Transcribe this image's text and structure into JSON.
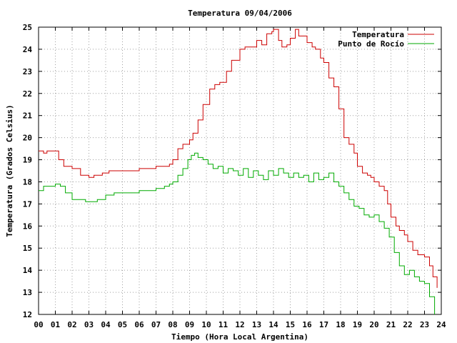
{
  "chart_data": {
    "type": "line",
    "title": "Temperatura 09/04/2006",
    "xlabel": "Tiempo (Hora Local Argentina)",
    "ylabel": "Temperatura (Grados Celsius)",
    "xlim": [
      0,
      24
    ],
    "ylim": [
      12,
      25
    ],
    "x_ticks": [
      0,
      1,
      2,
      3,
      4,
      5,
      6,
      7,
      8,
      9,
      10,
      11,
      12,
      13,
      14,
      15,
      16,
      17,
      18,
      19,
      20,
      21,
      22,
      23,
      24
    ],
    "x_tick_labels": [
      "00",
      "01",
      "02",
      "03",
      "04",
      "05",
      "06",
      "07",
      "08",
      "09",
      "10",
      "11",
      "12",
      "13",
      "14",
      "15",
      "16",
      "17",
      "18",
      "19",
      "20",
      "21",
      "22",
      "23",
      "24"
    ],
    "y_ticks": [
      12,
      13,
      14,
      15,
      16,
      17,
      18,
      19,
      20,
      21,
      22,
      23,
      24,
      25
    ],
    "grid": true,
    "legend_position": "top-right",
    "series": [
      {
        "name": "Temperatura",
        "color": "#cc0000",
        "x": [
          0,
          0.3,
          0.5,
          1.0,
          1.2,
          1.5,
          2.0,
          2.5,
          3.0,
          3.3,
          3.8,
          4.2,
          4.5,
          5.0,
          5.5,
          6.0,
          6.5,
          7.0,
          7.5,
          7.8,
          8.0,
          8.3,
          8.6,
          9.0,
          9.2,
          9.5,
          9.8,
          10.2,
          10.5,
          10.8,
          11.2,
          11.5,
          11.8,
          12.0,
          12.3,
          12.6,
          13.0,
          13.3,
          13.6,
          13.9,
          14.0,
          14.3,
          14.5,
          14.8,
          15.0,
          15.3,
          15.5,
          15.8,
          16.0,
          16.3,
          16.5,
          16.8,
          17.0,
          17.3,
          17.6,
          17.9,
          18.2,
          18.5,
          18.8,
          19.0,
          19.3,
          19.6,
          19.8,
          20.0,
          20.3,
          20.6,
          20.8,
          21.0,
          21.3,
          21.5,
          21.8,
          22.0,
          22.3,
          22.6,
          23.0,
          23.3,
          23.5,
          23.75
        ],
        "values": [
          19.4,
          19.3,
          19.4,
          19.4,
          19.0,
          18.7,
          18.6,
          18.3,
          18.2,
          18.3,
          18.4,
          18.5,
          18.5,
          18.5,
          18.5,
          18.6,
          18.6,
          18.7,
          18.7,
          18.8,
          19.0,
          19.5,
          19.7,
          19.9,
          20.2,
          20.8,
          21.5,
          22.2,
          22.4,
          22.5,
          23.0,
          23.5,
          23.5,
          24.0,
          24.1,
          24.1,
          24.4,
          24.2,
          24.7,
          24.8,
          24.9,
          24.4,
          24.1,
          24.2,
          24.5,
          24.9,
          24.6,
          24.6,
          24.3,
          24.1,
          24.0,
          23.6,
          23.4,
          22.7,
          22.3,
          21.3,
          20.0,
          19.7,
          19.3,
          18.7,
          18.4,
          18.3,
          18.2,
          18.0,
          17.8,
          17.6,
          17.0,
          16.4,
          16.0,
          15.8,
          15.6,
          15.3,
          14.9,
          14.7,
          14.6,
          14.2,
          13.7,
          13.2
        ]
      },
      {
        "name": "Punto de Rocío",
        "color": "#00aa00",
        "x": [
          0,
          0.3,
          0.5,
          1.0,
          1.3,
          1.6,
          2.0,
          2.3,
          2.8,
          3.2,
          3.5,
          4.0,
          4.5,
          5.0,
          5.5,
          6.0,
          6.5,
          7.0,
          7.5,
          7.8,
          8.0,
          8.3,
          8.6,
          8.9,
          9.1,
          9.3,
          9.5,
          9.8,
          10.1,
          10.4,
          10.7,
          11.0,
          11.3,
          11.6,
          11.9,
          12.2,
          12.5,
          12.8,
          13.1,
          13.4,
          13.7,
          14.0,
          14.3,
          14.6,
          14.9,
          15.2,
          15.5,
          15.8,
          16.1,
          16.4,
          16.7,
          17.0,
          17.3,
          17.6,
          17.9,
          18.2,
          18.5,
          18.8,
          19.1,
          19.4,
          19.7,
          20.0,
          20.3,
          20.6,
          20.9,
          21.2,
          21.5,
          21.8,
          22.1,
          22.4,
          22.7,
          23.0,
          23.3,
          23.6
        ],
        "values": [
          17.6,
          17.8,
          17.8,
          17.9,
          17.8,
          17.5,
          17.2,
          17.2,
          17.1,
          17.1,
          17.2,
          17.4,
          17.5,
          17.5,
          17.5,
          17.6,
          17.6,
          17.7,
          17.8,
          17.9,
          18.0,
          18.3,
          18.6,
          19.0,
          19.2,
          19.3,
          19.1,
          19.0,
          18.8,
          18.6,
          18.7,
          18.4,
          18.6,
          18.5,
          18.3,
          18.6,
          18.2,
          18.5,
          18.3,
          18.1,
          18.5,
          18.3,
          18.6,
          18.4,
          18.2,
          18.4,
          18.2,
          18.3,
          18.0,
          18.4,
          18.1,
          18.2,
          18.4,
          18.0,
          17.8,
          17.5,
          17.2,
          16.9,
          16.8,
          16.5,
          16.4,
          16.5,
          16.2,
          15.9,
          15.5,
          14.8,
          14.2,
          13.8,
          14.0,
          13.7,
          13.5,
          13.4,
          12.8,
          12.0
        ]
      }
    ]
  }
}
